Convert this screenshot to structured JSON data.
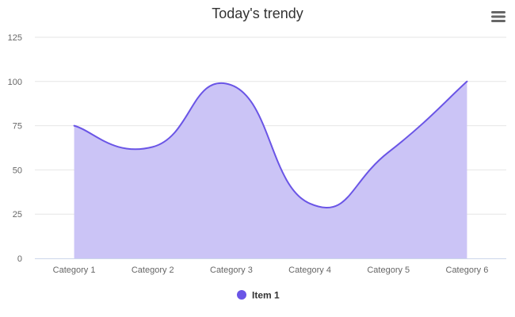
{
  "chart_data": {
    "type": "area",
    "title": "Today's trendy",
    "categories": [
      "Category 1",
      "Category 2",
      "Category 3",
      "Category 4",
      "Category 5",
      "Category 6"
    ],
    "series": [
      {
        "name": "Item 1",
        "values": [
          75,
          63,
          98,
          31,
          60,
          100
        ]
      }
    ],
    "xlabel": "",
    "ylabel": "",
    "ylim": [
      0,
      125
    ],
    "yticks": [
      0,
      25,
      50,
      75,
      100,
      125
    ],
    "grid": true,
    "legend": "bottom-center",
    "smooth": true
  },
  "colors": {
    "line": "#6a55e6",
    "fill": "#cbc4f6",
    "grid": "#e6e6e6",
    "axis": "#ccd6eb",
    "text": "#666666",
    "title": "#333333",
    "menu_icon": "#666666"
  },
  "toolbar": {
    "menu_icon": "hamburger-menu-icon"
  }
}
